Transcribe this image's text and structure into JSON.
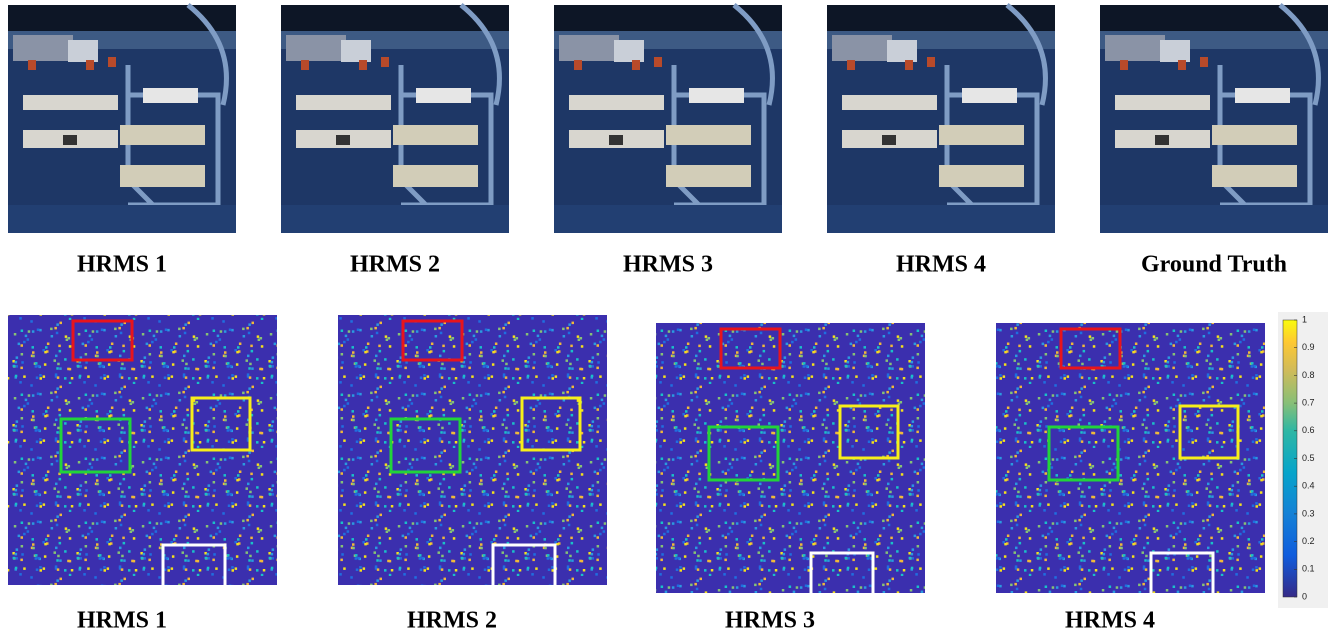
{
  "top_row": {
    "labels": [
      "HRMS 1",
      "HRMS 2",
      "HRMS 3",
      "HRMS 4",
      "Ground Truth"
    ]
  },
  "bottom_row": {
    "labels": [
      "HRMS 1",
      "HRMS 2",
      "HRMS 3",
      "HRMS 4"
    ]
  },
  "colorbar": {
    "lim": [
      0,
      1
    ],
    "ticks": [
      0,
      0.1,
      0.2,
      0.3,
      0.4,
      0.5,
      0.6,
      0.7,
      0.8,
      0.9,
      1
    ]
  }
}
